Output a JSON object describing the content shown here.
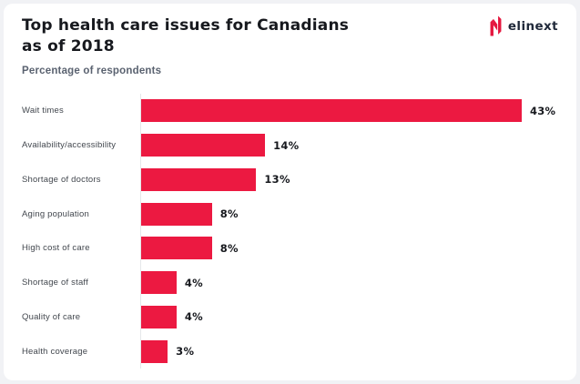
{
  "logo": {
    "text": "elinext",
    "icon": "elinext-n-icon",
    "icon_color": "#E5173F",
    "text_color": "#20293A"
  },
  "header": {
    "title_lines": [
      "Top health care issues for Canadians",
      "as of 2018"
    ],
    "subtitle": "Percentage of respondents"
  },
  "colors": {
    "bar": "#EC1941",
    "title": "#17191E",
    "subtitle": "#5A6270",
    "category_label": "#42474E",
    "axis_line": "#E5E7EA",
    "card_background": "#FFFFFF",
    "page_background": "#F1F2F5"
  },
  "chart_data": {
    "type": "bar",
    "orientation": "horizontal",
    "title": "Top health care issues for Canadians as of 2018",
    "subtitle": "Percentage of respondents",
    "categories": [
      "Wait times",
      "Availability/accessibility",
      "Shortage of doctors",
      "Aging population",
      "High cost of care",
      "Shortage of staff",
      "Quality of care",
      "Health coverage"
    ],
    "values": [
      43,
      14,
      13,
      8,
      8,
      4,
      4,
      3
    ],
    "value_labels": [
      "43%",
      "14%",
      "13%",
      "8%",
      "8%",
      "4%",
      "4%",
      "3%"
    ],
    "unit": "%",
    "xlim": [
      0,
      45
    ],
    "bar_color": "#EC1941",
    "grid": false,
    "legend": false,
    "value_labels_position": "end-of-bar"
  }
}
